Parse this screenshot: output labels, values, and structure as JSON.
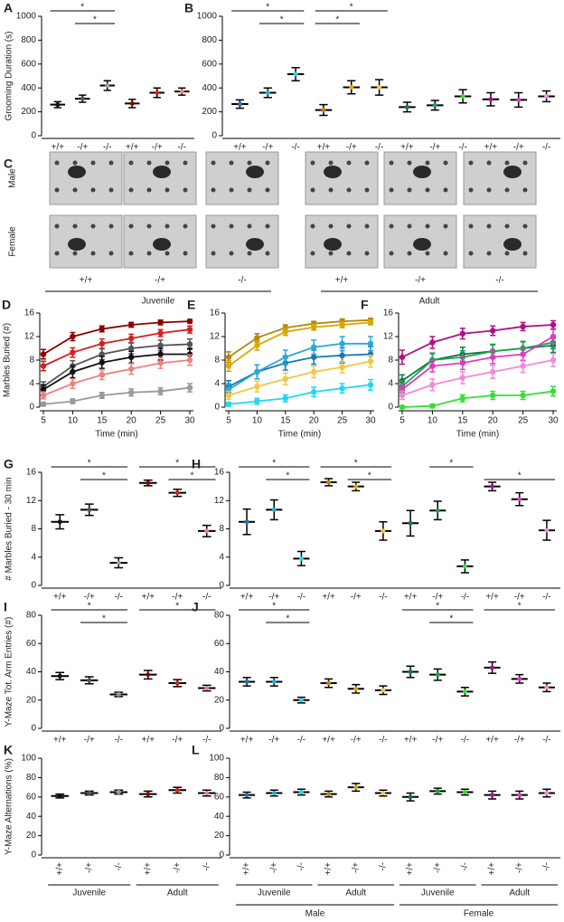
{
  "chart_data": [
    {
      "type": "dotplot",
      "panel": "A",
      "ylabel": "Grooming Duration (s)",
      "ylim": [
        0,
        1000
      ],
      "yticks": [
        0,
        200,
        400,
        600,
        800,
        1000
      ],
      "categories": [
        "+/+",
        "-/+",
        "-/-",
        "+/+",
        "-/+",
        "-/-"
      ],
      "colors": [
        "#111111",
        "#555555",
        "#9a9a9a",
        "#8b0000",
        "#d42020",
        "#f08080"
      ],
      "means": [
        260,
        310,
        420,
        270,
        360,
        370
      ],
      "errors": [
        25,
        30,
        40,
        35,
        40,
        30
      ],
      "significance": [
        {
          "label": "*",
          "groups": [
            0,
            2
          ]
        },
        {
          "label": "*",
          "groups": [
            1,
            2
          ]
        }
      ]
    },
    {
      "type": "dotplot",
      "panel": "B",
      "ylim": [
        0,
        1000
      ],
      "yticks": [
        0,
        200,
        400,
        600,
        800,
        1000
      ],
      "categories": [
        "+/+",
        "-/+",
        "-/-",
        "+/+",
        "-/+",
        "-/-",
        "+/+",
        "-/+",
        "-/-",
        "+/+",
        "-/+",
        "-/-"
      ],
      "colors": [
        "#1a78b4",
        "#27a9d8",
        "#22d8ee",
        "#b8860b",
        "#d9a800",
        "#f2c744",
        "#0e7a4a",
        "#1ba34f",
        "#33e033",
        "#b0108a",
        "#dd3cc0",
        "#f08ad8"
      ],
      "means": [
        265,
        360,
        515,
        215,
        405,
        405,
        240,
        255,
        330,
        305,
        300,
        330
      ],
      "errors": [
        35,
        40,
        55,
        45,
        55,
        65,
        40,
        40,
        55,
        55,
        60,
        45
      ],
      "significance": [
        {
          "label": "*",
          "groups": [
            0,
            2
          ]
        },
        {
          "label": "*",
          "groups": [
            1,
            2
          ]
        },
        {
          "label": "*",
          "groups": [
            3,
            5
          ]
        },
        {
          "label": "*",
          "groups": [
            3,
            4
          ]
        }
      ]
    },
    {
      "type": "line",
      "panel": "D",
      "ylabel": "Marbles Buried (#)",
      "xlabel": "Time (min)",
      "x": [
        5,
        10,
        15,
        20,
        25,
        30
      ],
      "xlim": [
        5,
        30
      ],
      "xticks": [
        5,
        10,
        15,
        20,
        25,
        30
      ],
      "ylim": [
        0,
        16
      ],
      "yticks": [
        0,
        4,
        8,
        12,
        16
      ],
      "series": [
        {
          "color": "#8b0000",
          "values": [
            9,
            12,
            13.3,
            14,
            14.4,
            14.6
          ],
          "errors": [
            0.8,
            0.7,
            0.5,
            0.4,
            0.4,
            0.3
          ]
        },
        {
          "color": "#d42020",
          "values": [
            7,
            9.3,
            10.8,
            11.7,
            12.6,
            13.2
          ],
          "errors": [
            0.8,
            0.8,
            0.8,
            0.7,
            0.6,
            0.6
          ]
        },
        {
          "color": "#555555",
          "values": [
            3.5,
            7,
            9,
            10,
            10.5,
            10.7
          ],
          "errors": [
            0.8,
            0.9,
            0.9,
            0.9,
            0.9,
            0.9
          ]
        },
        {
          "color": "#111111",
          "values": [
            3,
            6,
            7.6,
            8.5,
            9,
            9
          ],
          "errors": [
            0.8,
            1,
            1,
            1,
            1,
            1
          ]
        },
        {
          "color": "#f08080",
          "values": [
            2,
            4,
            5.5,
            6.5,
            7.5,
            8
          ],
          "errors": [
            0.6,
            0.8,
            0.8,
            0.9,
            0.9,
            0.9
          ]
        },
        {
          "color": "#9a9a9a",
          "values": [
            0.5,
            1,
            2,
            2.5,
            2.7,
            3.3
          ],
          "errors": [
            0.3,
            0.4,
            0.5,
            0.6,
            0.6,
            0.7
          ]
        }
      ]
    },
    {
      "type": "line",
      "panel": "E",
      "xlabel": "Time (min)",
      "x": [
        5,
        10,
        15,
        20,
        25,
        30
      ],
      "xlim": [
        5,
        30
      ],
      "xticks": [
        5,
        10,
        15,
        20,
        25,
        30
      ],
      "ylim": [
        0,
        16
      ],
      "yticks": [
        0,
        4,
        8,
        12,
        16
      ],
      "series": [
        {
          "color": "#b8860b",
          "values": [
            8.5,
            11.8,
            13.5,
            14.2,
            14.6,
            14.8
          ],
          "errors": [
            0.9,
            0.7,
            0.5,
            0.4,
            0.4,
            0.3
          ]
        },
        {
          "color": "#d9a800",
          "values": [
            7,
            10.5,
            12.8,
            13.6,
            14,
            14.4
          ],
          "errors": [
            0.9,
            0.8,
            0.6,
            0.5,
            0.5,
            0.4
          ]
        },
        {
          "color": "#1a78b4",
          "values": [
            3.5,
            6,
            7.5,
            8.5,
            8.8,
            9
          ],
          "errors": [
            1,
            1.2,
            1.2,
            1.2,
            1.3,
            1.3
          ]
        },
        {
          "color": "#27a9d8",
          "values": [
            3,
            6,
            8.5,
            10.2,
            10.8,
            10.8
          ],
          "errors": [
            1,
            1.2,
            1.2,
            1.2,
            1.2,
            1.2
          ]
        },
        {
          "color": "#f2c744",
          "values": [
            2,
            3.5,
            4.8,
            6,
            6.8,
            7.8
          ],
          "errors": [
            0.7,
            0.9,
            1,
            1,
            1,
            1
          ]
        },
        {
          "color": "#22d8ee",
          "values": [
            0.5,
            1,
            1.5,
            2.6,
            3.2,
            3.8
          ],
          "errors": [
            0.3,
            0.5,
            0.6,
            0.8,
            0.8,
            0.9
          ]
        }
      ]
    },
    {
      "type": "line",
      "panel": "F",
      "xlabel": "Time (min)",
      "x": [
        5,
        10,
        15,
        20,
        25,
        30
      ],
      "xlim": [
        5,
        30
      ],
      "xticks": [
        5,
        10,
        15,
        20,
        25,
        30
      ],
      "ylim": [
        0,
        16
      ],
      "yticks": [
        0,
        4,
        8,
        12,
        16
      ],
      "series": [
        {
          "color": "#b0108a",
          "values": [
            8.5,
            11,
            12.5,
            13,
            13.7,
            14
          ],
          "errors": [
            1.2,
            1,
            0.9,
            0.8,
            0.7,
            0.7
          ]
        },
        {
          "color": "#0e7a4a",
          "values": [
            4.5,
            8,
            9,
            9.5,
            10,
            10.5
          ],
          "errors": [
            1,
            1.2,
            1.2,
            1.2,
            1.2,
            1.2
          ]
        },
        {
          "color": "#1ba34f",
          "values": [
            3.5,
            8,
            8.5,
            9.5,
            10,
            11
          ],
          "errors": [
            1,
            1.1,
            1.1,
            1.1,
            1.1,
            1.1
          ]
        },
        {
          "color": "#dd3cc0",
          "values": [
            3,
            7,
            7.5,
            8.5,
            9,
            12
          ],
          "errors": [
            1,
            1,
            1.1,
            1.1,
            1.1,
            1.2
          ]
        },
        {
          "color": "#f08ad8",
          "values": [
            2,
            3.8,
            5,
            6,
            7,
            8
          ],
          "errors": [
            0.7,
            1,
            1,
            1.1,
            1.1,
            1.1
          ]
        },
        {
          "color": "#33e033",
          "values": [
            0,
            0.2,
            1.5,
            2,
            2,
            2.7
          ],
          "errors": [
            0.2,
            0.3,
            0.6,
            0.7,
            0.7,
            0.8
          ]
        }
      ]
    },
    {
      "type": "dotplot",
      "panel": "G",
      "ylabel": "# Marbles Buried - 30 min",
      "ylim": [
        0,
        16
      ],
      "yticks": [
        0,
        4,
        8,
        12,
        16
      ],
      "categories": [
        "+/+",
        "-/+",
        "-/-",
        "+/+",
        "-/+",
        "-/-"
      ],
      "colors": [
        "#111111",
        "#555555",
        "#9a9a9a",
        "#8b0000",
        "#d42020",
        "#f08080"
      ],
      "means": [
        9,
        10.7,
        3.2,
        14.5,
        13.1,
        7.7
      ],
      "errors": [
        1,
        0.8,
        0.7,
        0.4,
        0.5,
        0.8
      ],
      "significance": [
        {
          "label": "*",
          "groups": [
            0,
            2
          ]
        },
        {
          "label": "*",
          "groups": [
            1,
            2
          ]
        },
        {
          "label": "*",
          "groups": [
            3,
            5
          ]
        },
        {
          "label": "*",
          "groups": [
            4,
            5
          ]
        }
      ]
    },
    {
      "type": "dotplot",
      "panel": "H",
      "ylim": [
        0,
        16
      ],
      "yticks": [
        0,
        4,
        8,
        12,
        16
      ],
      "categories": [
        "+/+",
        "-/+",
        "-/-",
        "+/+",
        "-/+",
        "-/-",
        "+/+",
        "-/+",
        "-/-",
        "+/+",
        "-/+",
        "-/-"
      ],
      "colors": [
        "#1a78b4",
        "#27a9d8",
        "#22d8ee",
        "#b8860b",
        "#d9a800",
        "#f2c744",
        "#0e7a4a",
        "#1ba34f",
        "#33e033",
        "#b0108a",
        "#dd3cc0",
        "#f08ad8"
      ],
      "means": [
        9,
        10.7,
        3.8,
        14.6,
        14,
        7.7,
        8.8,
        10.6,
        2.7,
        14,
        12.2,
        7.8
      ],
      "errors": [
        1.8,
        1.4,
        1,
        0.5,
        0.6,
        1.3,
        1.8,
        1.3,
        0.9,
        0.6,
        0.9,
        1.4
      ],
      "significance": [
        {
          "label": "*",
          "groups": [
            0,
            2
          ]
        },
        {
          "label": "*",
          "groups": [
            1,
            2
          ]
        },
        {
          "label": "*",
          "groups": [
            3,
            5
          ]
        },
        {
          "label": "*",
          "groups": [
            4,
            5
          ]
        },
        {
          "label": "*",
          "groups": [
            7,
            8
          ]
        },
        {
          "label": "*",
          "groups": [
            9,
            11
          ]
        }
      ]
    },
    {
      "type": "dotplot",
      "panel": "I",
      "ylabel": "Y-Maze Tot. Arm Entries (#)",
      "ylim": [
        0,
        80
      ],
      "yticks": [
        0,
        20,
        40,
        60,
        80
      ],
      "categories": [
        "+/+",
        "-/+",
        "-/-",
        "+/+",
        "-/+",
        "-/-"
      ],
      "colors": [
        "#111111",
        "#555555",
        "#9a9a9a",
        "#8b0000",
        "#d42020",
        "#f08080"
      ],
      "means": [
        37,
        34,
        24,
        38,
        32,
        28.5
      ],
      "errors": [
        2.5,
        2.5,
        1.5,
        3,
        2.5,
        2
      ],
      "significance": [
        {
          "label": "*",
          "groups": [
            0,
            2
          ]
        },
        {
          "label": "*",
          "groups": [
            1,
            2
          ]
        },
        {
          "label": "*",
          "groups": [
            3,
            5
          ]
        }
      ]
    },
    {
      "type": "dotplot",
      "panel": "J",
      "ylim": [
        0,
        80
      ],
      "yticks": [
        0,
        20,
        40,
        60,
        80
      ],
      "categories": [
        "+/+",
        "-/+",
        "-/-",
        "+/+",
        "-/+",
        "-/-",
        "+/+",
        "-/+",
        "-/-",
        "+/+",
        "-/+",
        "-/-"
      ],
      "colors": [
        "#1a78b4",
        "#27a9d8",
        "#22d8ee",
        "#b8860b",
        "#d9a800",
        "#f2c744",
        "#0e7a4a",
        "#1ba34f",
        "#33e033",
        "#b0108a",
        "#dd3cc0",
        "#f08ad8"
      ],
      "means": [
        33,
        33,
        20,
        32,
        28,
        27,
        40,
        38,
        26,
        43,
        35,
        29
      ],
      "errors": [
        3,
        3,
        2,
        3,
        3,
        3,
        4,
        4,
        3,
        4,
        3,
        3
      ],
      "significance": [
        {
          "label": "*",
          "groups": [
            0,
            2
          ]
        },
        {
          "label": "*",
          "groups": [
            1,
            2
          ]
        },
        {
          "label": "*",
          "groups": [
            6,
            8
          ]
        },
        {
          "label": "*",
          "groups": [
            7,
            8
          ]
        },
        {
          "label": "*",
          "groups": [
            9,
            11
          ]
        }
      ]
    },
    {
      "type": "dotplot",
      "panel": "K",
      "ylabel": "Y-Maze Alternations (%)",
      "ylim": [
        0,
        100
      ],
      "yticks": [
        0,
        20,
        40,
        60,
        80,
        100
      ],
      "rotate_labels": true,
      "categories": [
        "+/+",
        "-/+",
        "-/-",
        "+/+",
        "-/+",
        "-/-"
      ],
      "colors": [
        "#111111",
        "#555555",
        "#9a9a9a",
        "#8b0000",
        "#d42020",
        "#f08080"
      ],
      "means": [
        61,
        64,
        65,
        63,
        67,
        64
      ],
      "errors": [
        2,
        2,
        2,
        3,
        3,
        3
      ],
      "group_labels": [
        "Juvenile",
        "Adult"
      ]
    },
    {
      "type": "dotplot",
      "panel": "L",
      "ylim": [
        0,
        100
      ],
      "yticks": [
        0,
        20,
        40,
        60,
        80,
        100
      ],
      "rotate_labels": true,
      "categories": [
        "+/+",
        "-/+",
        "-/-",
        "+/+",
        "-/+",
        "-/-",
        "+/+",
        "-/+",
        "-/-",
        "+/+",
        "-/+",
        "-/-"
      ],
      "colors": [
        "#1a78b4",
        "#27a9d8",
        "#22d8ee",
        "#b8860b",
        "#d9a800",
        "#f2c744",
        "#0e7a4a",
        "#1ba34f",
        "#33e033",
        "#b0108a",
        "#dd3cc0",
        "#f08ad8"
      ],
      "means": [
        62,
        64,
        65,
        63,
        70,
        64,
        60,
        66,
        65,
        62,
        62,
        64
      ],
      "errors": [
        3,
        3,
        3,
        3,
        4,
        3,
        4,
        3,
        3,
        4,
        4,
        4
      ],
      "group_labels": [
        "Juvenile",
        "Adult",
        "Juvenile",
        "Adult"
      ],
      "sex_labels": [
        "Male",
        "Female"
      ]
    }
  ],
  "photos": {
    "panel": "C",
    "rows": [
      "Male",
      "Female"
    ],
    "columns": [
      "+/+",
      "-/+",
      "-/-",
      "+/+",
      "-/+",
      "-/-"
    ],
    "groups": [
      "Juvenile",
      "Adult"
    ]
  }
}
